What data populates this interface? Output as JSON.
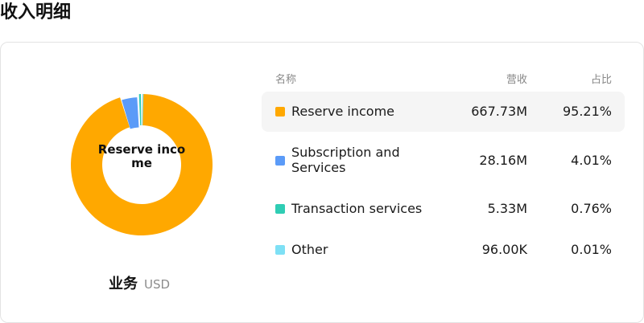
{
  "page": {
    "title": "收入明细"
  },
  "donut": {
    "center_label": "Reserve income"
  },
  "footer": {
    "title": "业务",
    "unit": "USD"
  },
  "table": {
    "headers": {
      "name": "名称",
      "revenue": "营收",
      "share": "占比"
    },
    "rows": [
      {
        "name": "Reserve income",
        "revenue": "667.73M",
        "share": "95.21%",
        "color": "#FFA800",
        "share_value": 95.21,
        "active": true
      },
      {
        "name": "Subscription and Services",
        "revenue": "28.16M",
        "share": "4.01%",
        "color": "#5B9BF8",
        "share_value": 4.01,
        "active": false
      },
      {
        "name": "Transaction services",
        "revenue": "5.33M",
        "share": "0.76%",
        "color": "#2FCDB4",
        "share_value": 0.76,
        "active": false
      },
      {
        "name": "Other",
        "revenue": "96.00K",
        "share": "0.01%",
        "color": "#7EE0F5",
        "share_value": 0.01,
        "active": false
      }
    ]
  },
  "chart_data": {
    "type": "pie",
    "categories": [
      "Reserve income",
      "Subscription and Services",
      "Transaction services",
      "Other"
    ],
    "values": [
      95.21,
      4.01,
      0.76,
      0.01
    ]
  }
}
